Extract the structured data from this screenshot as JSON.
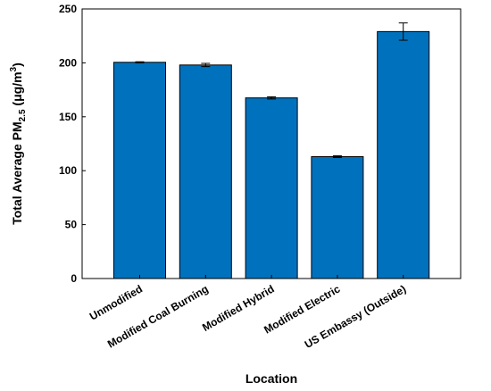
{
  "chart_data": {
    "type": "bar",
    "categories": [
      "Unmodified",
      "Modified Coal Burning",
      "Modified Hybrid",
      "Modified Electric",
      "US Embassy (Outside)"
    ],
    "values": [
      200.5,
      198.0,
      167.5,
      113.0,
      229.0
    ],
    "error": [
      0.5,
      1.5,
      1.0,
      0.8,
      8.0
    ],
    "xlabel": "Location",
    "ylabel": {
      "prefix": "Total Average PM",
      "subscript": "2.5",
      "unit_open": " (μg/m",
      "superscript": "3",
      "unit_close": ")"
    },
    "ylim": [
      0,
      250
    ],
    "yticks": [
      0,
      50,
      100,
      150,
      200,
      250
    ],
    "grid": false,
    "bar_color": "#0072BD"
  }
}
